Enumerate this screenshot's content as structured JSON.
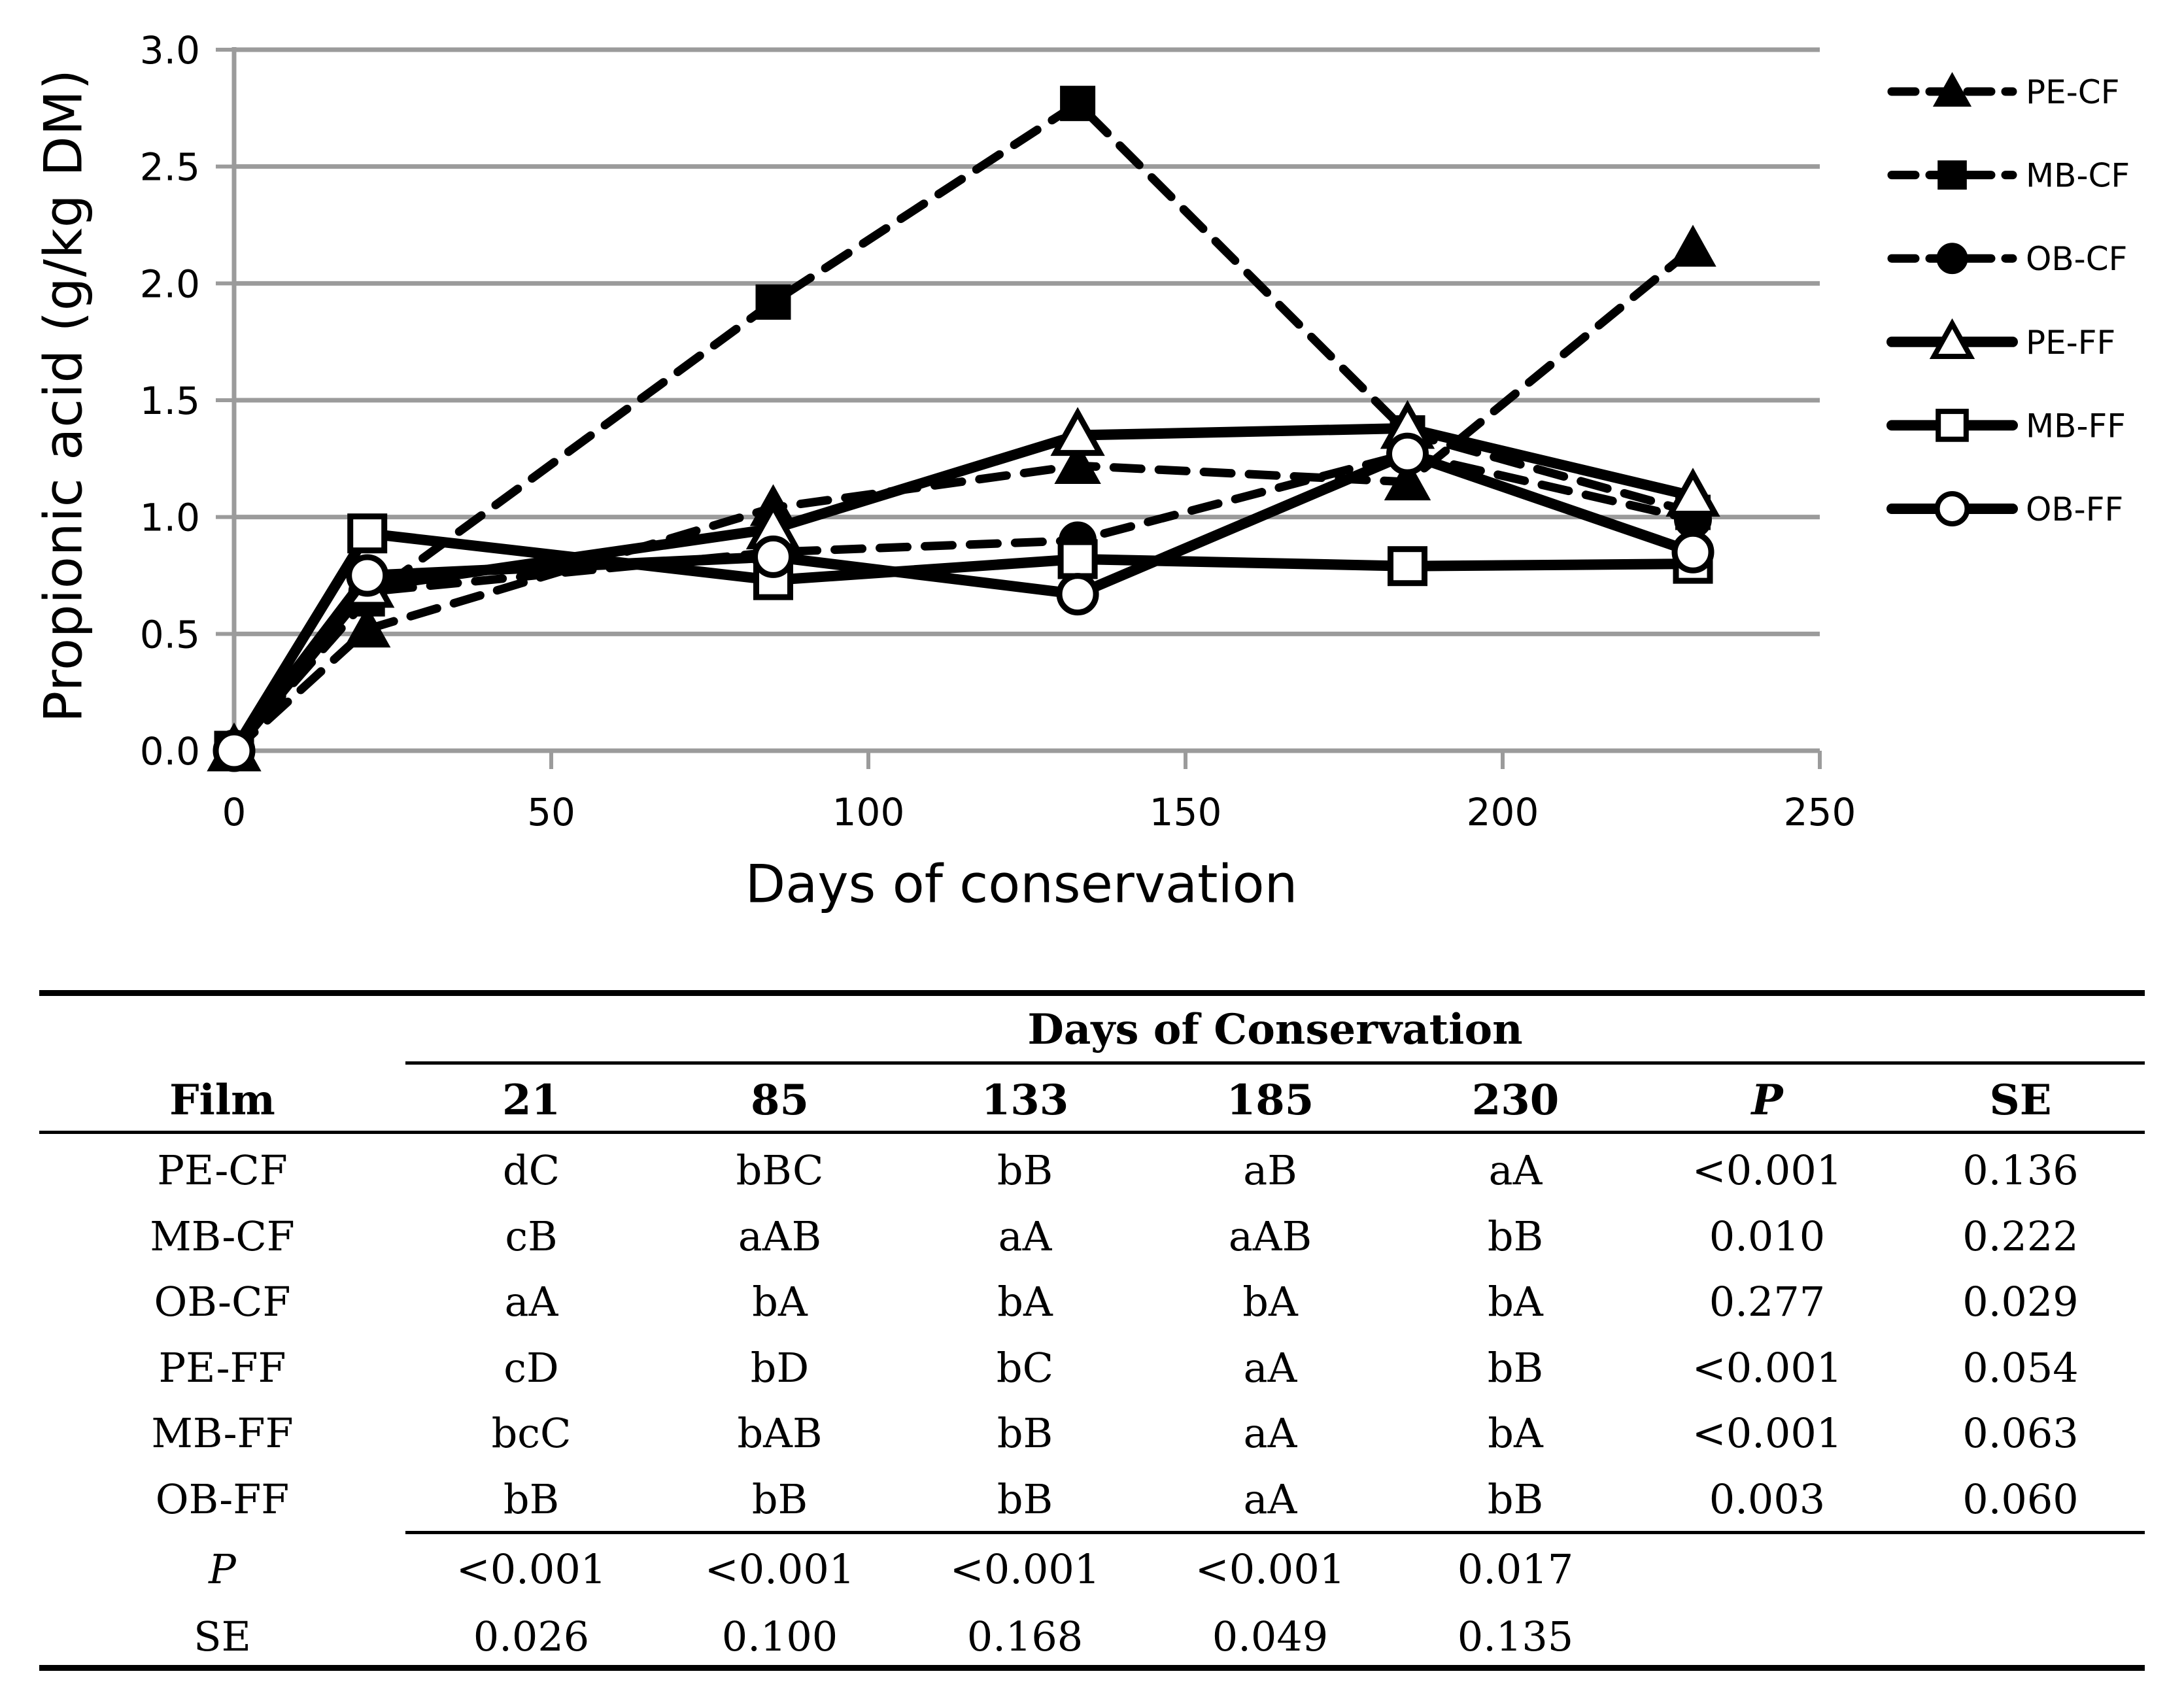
{
  "chart_data": {
    "type": "line",
    "title": "",
    "xlabel": "Days of conservation",
    "ylabel": "Propionic acid (g/kg DM)",
    "xlim": [
      0,
      250
    ],
    "ylim": [
      0.0,
      3.0
    ],
    "xticks": [
      0,
      50,
      100,
      150,
      200,
      250
    ],
    "yticks": [
      0.0,
      0.5,
      1.0,
      1.5,
      2.0,
      2.5,
      3.0
    ],
    "grid": "horizontal",
    "legend_position": "right",
    "x": [
      0,
      21,
      85,
      133,
      185,
      230
    ],
    "series": [
      {
        "name": "PE-CF",
        "line": "dashed",
        "marker": "triangle-filled",
        "values": [
          0,
          0.52,
          1.04,
          1.22,
          1.15,
          2.15
        ]
      },
      {
        "name": "MB-CF",
        "line": "dashed",
        "marker": "square-filled",
        "values": [
          0,
          0.65,
          1.92,
          2.77,
          1.36,
          1.02
        ]
      },
      {
        "name": "OB-CF",
        "line": "dashed",
        "marker": "circle-filled",
        "values": [
          0,
          0.68,
          0.85,
          0.9,
          1.27,
          0.99
        ]
      },
      {
        "name": "PE-FF",
        "line": "solid",
        "marker": "triangle-open",
        "values": [
          0,
          0.7,
          0.95,
          1.35,
          1.38,
          1.09
        ]
      },
      {
        "name": "MB-FF",
        "line": "solid",
        "marker": "square-open",
        "values": [
          0,
          0.93,
          0.73,
          0.82,
          0.79,
          0.8
        ]
      },
      {
        "name": "OB-FF",
        "line": "solid",
        "marker": "circle-open",
        "values": [
          0,
          0.75,
          0.83,
          0.67,
          1.27,
          0.85
        ]
      }
    ]
  },
  "legend": {
    "items": [
      "PE-CF",
      "MB-CF",
      "OB-CF",
      "PE-FF",
      "MB-FF",
      "OB-FF"
    ]
  },
  "table": {
    "group_header": "Days of Conservation",
    "columns": [
      "Film",
      "21",
      "85",
      "133",
      "185",
      "230",
      "P",
      "SE"
    ],
    "rows": [
      {
        "film": "PE-CF",
        "cells": [
          "dC",
          "bBC",
          "bB",
          "aB",
          "aA",
          "<0.001",
          "0.136"
        ]
      },
      {
        "film": "MB-CF",
        "cells": [
          "cB",
          "aAB",
          "aA",
          "aAB",
          "bB",
          "0.010",
          "0.222"
        ]
      },
      {
        "film": "OB-CF",
        "cells": [
          "aA",
          "bA",
          "bA",
          "bA",
          "bA",
          "0.277",
          "0.029"
        ]
      },
      {
        "film": "PE-FF",
        "cells": [
          "cD",
          "bD",
          "bC",
          "aA",
          "bB",
          "<0.001",
          "0.054"
        ]
      },
      {
        "film": "MB-FF",
        "cells": [
          "bcC",
          "bAB",
          "bB",
          "aA",
          "bA",
          "<0.001",
          "0.063"
        ]
      },
      {
        "film": "OB-FF",
        "cells": [
          "bB",
          "bB",
          "bB",
          "aA",
          "bB",
          "0.003",
          "0.060"
        ]
      }
    ],
    "p_row": {
      "label": "P",
      "values": [
        "<0.001",
        "<0.001",
        "<0.001",
        "<0.001",
        "0.017"
      ]
    },
    "se_row": {
      "label": "SE",
      "values": [
        "0.026",
        "0.100",
        "0.168",
        "0.049",
        "0.135"
      ]
    }
  },
  "colors": {
    "line": "#000000",
    "grid": "#9b9b9b",
    "text": "#000000",
    "background": "#ffffff"
  }
}
